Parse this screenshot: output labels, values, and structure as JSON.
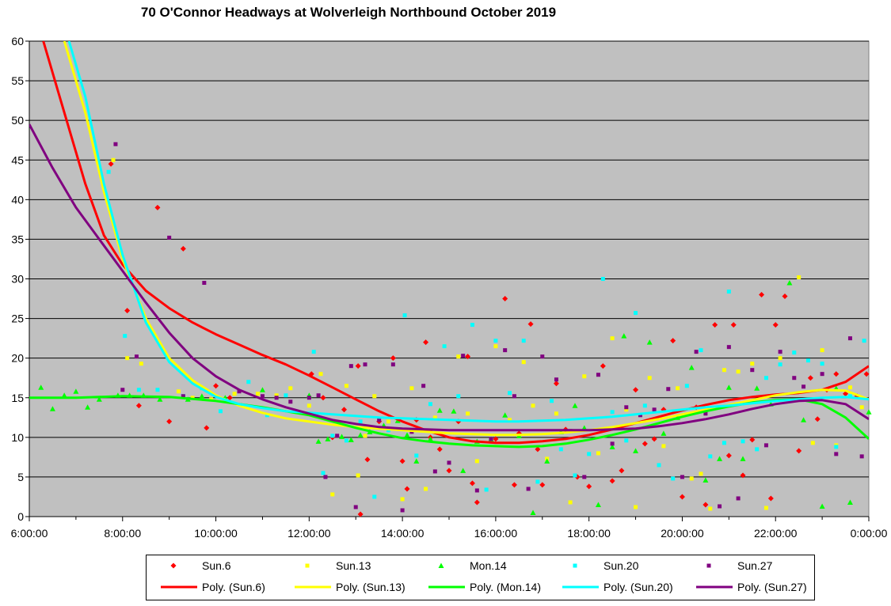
{
  "chart_data": {
    "type": "scatter",
    "title": "70 O'Connor Headways  at Wolverleigh  Northbound  October 2019",
    "xlabel": "",
    "ylabel": "",
    "xlim": [
      6,
      24
    ],
    "ylim": [
      0,
      60
    ],
    "x_ticks": [
      "6:00:00",
      "8:00:00",
      "10:00:00",
      "12:00:00",
      "14:00:00",
      "16:00:00",
      "18:00:00",
      "20:00:00",
      "22:00:00",
      "0:00:00"
    ],
    "y_ticks": [
      "0",
      "5",
      "10",
      "15",
      "20",
      "25",
      "30",
      "35",
      "40",
      "45",
      "50",
      "55",
      "60"
    ],
    "grid": "horizontal",
    "background": "#c0c0c0",
    "legend_position": "bottom",
    "series": [
      {
        "name": "Sun.6",
        "marker": "diamond",
        "color": "#ff0000",
        "x": [
          7.75,
          8.1,
          8.35,
          8.75,
          9.0,
          9.3,
          9.8,
          10.0,
          10.3,
          12.05,
          12.3,
          12.5,
          12.75,
          13.05,
          13.1,
          13.25,
          13.5,
          13.8,
          14.0,
          14.1,
          14.3,
          14.5,
          14.6,
          14.8,
          15.0,
          15.2,
          15.4,
          15.5,
          15.6,
          16.0,
          16.2,
          16.4,
          16.5,
          16.75,
          16.9,
          17.0,
          17.3,
          17.5,
          17.75,
          18.0,
          18.3,
          18.5,
          18.7,
          19.0,
          19.2,
          19.4,
          19.6,
          19.8,
          20.0,
          20.3,
          20.5,
          20.7,
          21.0,
          21.1,
          21.3,
          21.5,
          21.7,
          21.9,
          22.0,
          22.2,
          22.5,
          22.75,
          22.9,
          23.1,
          23.3,
          23.5,
          23.75,
          23.95
        ],
        "y": [
          44.5,
          26,
          14,
          39,
          12,
          33.8,
          11.2,
          16.5,
          15,
          18,
          15,
          10,
          13.5,
          19,
          0.3,
          7.2,
          12,
          20,
          7,
          3.5,
          12.2,
          22,
          10,
          8.5,
          5.8,
          12,
          20.2,
          4.2,
          1.8,
          9.8,
          27.5,
          4,
          10.5,
          24.3,
          8.5,
          4,
          16.8,
          11,
          5,
          3.8,
          19,
          4.5,
          5.8,
          16,
          9.2,
          9.8,
          13.5,
          22.2,
          2.5,
          13.8,
          1.5,
          24.2,
          7.7,
          24.2,
          5.2,
          9.7,
          28,
          2.3,
          24.2,
          27.8,
          8.3,
          17.5,
          12.3,
          16,
          18,
          15.5,
          15.2,
          18
        ]
      },
      {
        "name": "Sun.13",
        "marker": "square",
        "color": "#ffff00",
        "x": [
          7.8,
          8.1,
          8.4,
          9.2,
          9.5,
          9.9,
          10.4,
          10.9,
          11.3,
          11.6,
          12.0,
          12.25,
          12.5,
          12.8,
          13.05,
          13.2,
          13.4,
          13.7,
          14.0,
          14.2,
          14.5,
          14.7,
          14.9,
          15.2,
          15.4,
          15.6,
          16.0,
          16.3,
          16.6,
          16.8,
          17.1,
          17.3,
          17.6,
          17.9,
          18.2,
          18.5,
          18.8,
          19.0,
          19.3,
          19.6,
          19.9,
          20.2,
          20.4,
          20.6,
          20.9,
          21.2,
          21.5,
          21.8,
          22.1,
          22.5,
          22.8,
          23.0,
          23.3,
          23.6,
          23.85
        ],
        "y": [
          45,
          20,
          19.3,
          15.8,
          15,
          14.8,
          15.5,
          15.5,
          15.3,
          16.2,
          14,
          18,
          2.8,
          16.5,
          5.2,
          10.2,
          15.2,
          12,
          2.2,
          16.2,
          3.5,
          12.5,
          21.5,
          20.2,
          13,
          7,
          21.5,
          12.2,
          19.5,
          14,
          7.3,
          13,
          1.8,
          17.7,
          8,
          22.5,
          13.5,
          1.2,
          17.5,
          8.9,
          16.2,
          4.8,
          5.4,
          1,
          18.5,
          18.3,
          19.3,
          1.1,
          20,
          30.2,
          9.3,
          21,
          9,
          16.3,
          13.8
        ]
      },
      {
        "name": "Mon.14",
        "marker": "triangle",
        "color": "#00ff00",
        "x": [
          6.25,
          6.5,
          6.75,
          7.0,
          7.25,
          7.5,
          7.9,
          8.15,
          8.45,
          8.8,
          9.4,
          9.7,
          10.2,
          11.0,
          12.0,
          12.2,
          12.4,
          12.7,
          12.9,
          13.1,
          13.3,
          13.6,
          13.9,
          14.1,
          14.3,
          14.6,
          14.8,
          15.1,
          15.3,
          15.6,
          15.9,
          16.2,
          16.5,
          16.8,
          17.1,
          17.4,
          17.7,
          17.9,
          18.2,
          18.5,
          18.75,
          19.0,
          19.3,
          19.6,
          19.9,
          20.2,
          20.5,
          20.8,
          21.0,
          21.3,
          21.6,
          21.9,
          22.3,
          22.6,
          23.0,
          23.3,
          23.6,
          24.0
        ],
        "y": [
          16.3,
          13.6,
          15.3,
          15.8,
          13.8,
          14.8,
          15.3,
          15.3,
          15.3,
          14.8,
          14.8,
          15.2,
          15,
          16,
          15.3,
          9.5,
          9.8,
          10.1,
          9.7,
          10.3,
          10.7,
          11.5,
          12.1,
          10.3,
          7,
          9.8,
          13.4,
          13.3,
          5.8,
          9.5,
          9.8,
          12.8,
          10.2,
          0.5,
          7,
          10.7,
          14,
          11.2,
          1.5,
          8.8,
          22.8,
          8.3,
          22,
          10.5,
          12.5,
          18.8,
          4.6,
          7.3,
          16.3,
          7.3,
          16.2,
          14.2,
          29.5,
          12.2,
          1.3,
          16.2,
          1.8,
          13.2
        ]
      },
      {
        "name": "Sun.20",
        "marker": "square",
        "color": "#00ffff",
        "x": [
          7.7,
          8.05,
          8.35,
          8.75,
          9.3,
          9.7,
          10.1,
          10.7,
          11.1,
          11.5,
          12.1,
          12.3,
          12.5,
          12.8,
          13.1,
          13.4,
          13.7,
          14.05,
          14.3,
          14.6,
          14.9,
          15.2,
          15.5,
          15.8,
          16.0,
          16.3,
          16.6,
          16.9,
          17.2,
          17.4,
          17.7,
          18.0,
          18.3,
          18.5,
          18.8,
          19.0,
          19.2,
          19.5,
          19.8,
          20.1,
          20.4,
          20.6,
          20.9,
          21.0,
          21.3,
          21.6,
          21.8,
          22.1,
          22.4,
          22.7,
          23.0,
          23.3,
          23.6,
          23.9
        ],
        "y": [
          43.5,
          22.8,
          16,
          16,
          15.2,
          16.2,
          13.3,
          17,
          12.8,
          15.3,
          20.8,
          5.5,
          10.2,
          9.6,
          12,
          2.5,
          10.9,
          25.4,
          7.7,
          14.2,
          21.5,
          15.2,
          24.2,
          3.4,
          22.2,
          15.6,
          22.2,
          4.4,
          14.6,
          8.5,
          5.2,
          7.9,
          30,
          13.2,
          9.6,
          25.7,
          14,
          6.5,
          4.8,
          16.5,
          21,
          7.6,
          9.3,
          28.4,
          9.5,
          8.5,
          17.5,
          19.2,
          20.7,
          19.7,
          19.3,
          8.8,
          15.2,
          22.2
        ]
      },
      {
        "name": "Sun.27",
        "marker": "square",
        "color": "#800080",
        "x": [
          7.85,
          8.0,
          8.3,
          9.0,
          9.3,
          9.75,
          10.5,
          11.0,
          11.3,
          11.6,
          12.0,
          12.2,
          12.35,
          12.6,
          12.9,
          13.0,
          13.2,
          13.5,
          13.8,
          14.0,
          14.2,
          14.45,
          14.7,
          15.0,
          15.3,
          15.6,
          15.9,
          16.2,
          16.4,
          16.7,
          17.0,
          17.3,
          17.6,
          17.9,
          18.2,
          18.5,
          18.8,
          19.1,
          19.4,
          19.7,
          20.0,
          20.3,
          20.5,
          20.8,
          21.0,
          21.2,
          21.5,
          21.8,
          22.1,
          22.4,
          22.6,
          23.0,
          23.3,
          23.6,
          23.85
        ],
        "y": [
          47,
          16,
          20.2,
          35.2,
          15.2,
          29.5,
          15.8,
          15.2,
          15,
          14.5,
          15,
          15.3,
          5,
          10.2,
          19,
          1.2,
          19.2,
          12.2,
          19.2,
          0.8,
          10.7,
          16.5,
          5.7,
          6.8,
          20.3,
          3.3,
          9.8,
          21,
          15.2,
          3.5,
          20.2,
          17.3,
          10.8,
          5,
          17.9,
          9.2,
          13.8,
          12.8,
          13.5,
          16.1,
          5,
          20.8,
          13,
          1.3,
          21.4,
          2.3,
          18.5,
          9,
          20.8,
          17.5,
          16.4,
          18,
          7.9,
          22.5,
          7.6
        ]
      }
    ],
    "trendlines": [
      {
        "name": "Poly. (Sun.6)",
        "color": "#ff0000",
        "x": [
          6.3,
          6.7,
          7.2,
          7.6,
          8.0,
          8.5,
          9.0,
          9.5,
          10.0,
          10.5,
          11.0,
          11.5,
          12.0,
          12.5,
          13.0,
          13.5,
          14.0,
          14.5,
          15.0,
          15.5,
          16.0,
          16.5,
          17.0,
          17.5,
          18.0,
          18.5,
          19.0,
          19.5,
          20.0,
          20.5,
          21.0,
          21.5,
          22.0,
          22.5,
          23.0,
          23.5,
          24.0
        ],
        "y": [
          60,
          52,
          42,
          35.5,
          31.8,
          28.5,
          26.3,
          24.5,
          23,
          21.7,
          20.4,
          19.2,
          17.8,
          16.3,
          14.8,
          13.3,
          12,
          10.9,
          10,
          9.5,
          9.3,
          9.3,
          9.5,
          9.8,
          10.3,
          11.0,
          11.8,
          12.6,
          13.4,
          14.1,
          14.7,
          15.1,
          15.4,
          15.6,
          16.0,
          17.0,
          19.0
        ]
      },
      {
        "name": "Poly. (Sun.13)",
        "color": "#ffff00",
        "x": [
          6.75,
          7.2,
          7.6,
          8.0,
          8.5,
          9.0,
          9.5,
          10.0,
          10.5,
          11.0,
          11.5,
          12.0,
          12.5,
          13.0,
          13.5,
          14.0,
          14.5,
          15.0,
          15.5,
          16.0,
          16.5,
          17.0,
          17.5,
          18.0,
          18.5,
          19.0,
          19.5,
          20.0,
          20.5,
          21.0,
          21.5,
          22.0,
          22.5,
          23.0,
          23.5,
          24.0
        ],
        "y": [
          60,
          51,
          41,
          32.5,
          25,
          20,
          17.2,
          15.3,
          14,
          13.1,
          12.4,
          12,
          11.6,
          11.3,
          11.1,
          10.9,
          10.7,
          10.5,
          10.4,
          10.3,
          10.3,
          10.4,
          10.6,
          10.9,
          11.3,
          11.8,
          12.3,
          12.9,
          13.5,
          14.1,
          14.7,
          15.3,
          15.7,
          16.0,
          15.9,
          14.8
        ]
      },
      {
        "name": "Poly. (Mon.14)",
        "color": "#00ff00",
        "x": [
          6.0,
          7.0,
          8.0,
          9.0,
          10.0,
          11.0,
          12.0,
          12.5,
          13.0,
          13.5,
          14.0,
          14.5,
          15.0,
          15.5,
          16.0,
          16.5,
          17.0,
          17.5,
          18.0,
          18.5,
          19.0,
          19.5,
          20.0,
          20.5,
          21.0,
          21.5,
          22.0,
          22.5,
          23.0,
          23.5,
          24.0
        ],
        "y": [
          15,
          15,
          15.2,
          15.1,
          14.6,
          13.8,
          12.8,
          12.0,
          11.2,
          10.5,
          9.9,
          9.5,
          9.2,
          9.0,
          8.9,
          8.8,
          8.9,
          9.2,
          9.7,
          10.3,
          11.0,
          11.8,
          12.6,
          13.3,
          13.9,
          14.4,
          14.7,
          14.8,
          14.2,
          12.5,
          9.8
        ]
      },
      {
        "name": "Poly. (Sun.20)",
        "color": "#00ffff",
        "x": [
          6.85,
          7.2,
          7.6,
          8.0,
          8.5,
          9.0,
          9.5,
          10.0,
          10.5,
          11.0,
          11.5,
          12.0,
          12.5,
          13.0,
          13.5,
          14.0,
          14.5,
          15.0,
          15.5,
          16.0,
          16.5,
          17.0,
          17.5,
          18.0,
          18.5,
          19.0,
          19.5,
          20.0,
          20.5,
          21.0,
          21.5,
          22.0,
          22.5,
          23.0,
          23.5,
          24.0
        ],
        "y": [
          60,
          53,
          42,
          33,
          24.5,
          19.5,
          16.8,
          15.1,
          14.2,
          13.7,
          13.3,
          13.1,
          12.9,
          12.7,
          12.5,
          12.4,
          12.3,
          12.2,
          12.1,
          12.0,
          12.0,
          12.1,
          12.2,
          12.4,
          12.6,
          12.9,
          13.2,
          13.5,
          13.8,
          14.0,
          14.3,
          14.6,
          14.8,
          15.0,
          15.1,
          14.8
        ]
      },
      {
        "name": "Poly. (Sun.27)",
        "color": "#800080",
        "x": [
          6.0,
          6.5,
          7.0,
          7.5,
          8.0,
          8.5,
          9.0,
          9.5,
          10.0,
          10.5,
          11.0,
          11.5,
          12.0,
          12.5,
          13.0,
          13.5,
          14.0,
          14.5,
          15.0,
          15.5,
          16.0,
          16.5,
          17.0,
          17.5,
          18.0,
          18.5,
          19.0,
          19.5,
          20.0,
          20.5,
          21.0,
          21.5,
          22.0,
          22.5,
          23.0,
          23.5,
          24.0
        ],
        "y": [
          49.5,
          44,
          39,
          35,
          31,
          27,
          23.2,
          20,
          17.7,
          16,
          14.8,
          13.8,
          13,
          12.2,
          11.7,
          11.3,
          11.1,
          11.0,
          10.9,
          10.9,
          10.9,
          10.9,
          10.9,
          10.9,
          10.9,
          11.0,
          11.1,
          11.4,
          11.8,
          12.3,
          12.9,
          13.6,
          14.2,
          14.6,
          14.7,
          14.2,
          12.3
        ]
      }
    ]
  }
}
